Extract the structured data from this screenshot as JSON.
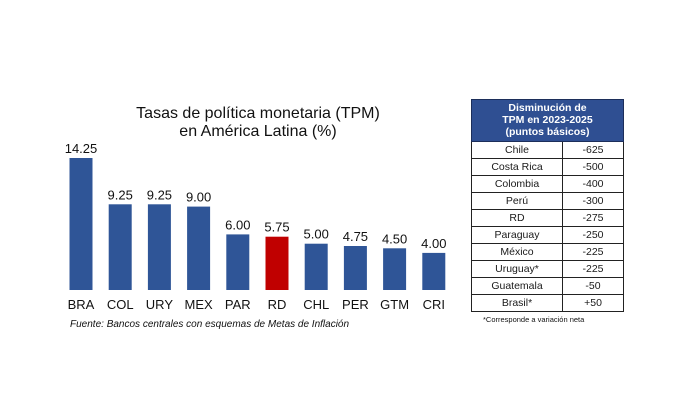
{
  "chart_data": {
    "type": "bar",
    "title_lines": [
      "Tasas de política monetaria (TPM)",
      "en América Latina (%)"
    ],
    "categories": [
      "BRA",
      "COL",
      "URY",
      "MEX",
      "PAR",
      "RD",
      "CHL",
      "PER",
      "GTM",
      "CRI"
    ],
    "values": [
      14.25,
      9.25,
      9.25,
      9.0,
      6.0,
      5.75,
      5.0,
      4.75,
      4.5,
      4.0
    ],
    "value_labels": [
      "14.25",
      "9.25",
      "9.25",
      "9.00",
      "6.00",
      "5.75",
      "5.00",
      "4.75",
      "4.50",
      "4.00"
    ],
    "highlight_category": "RD",
    "colors": {
      "default": "#2f5597",
      "highlight": "#c00000"
    },
    "xlabel": "",
    "ylabel": "",
    "ylim": [
      0,
      14.25
    ],
    "grid": false
  },
  "source": "Fuente: Bancos centrales con esquemas de Metas de Inflación",
  "table": {
    "header": [
      "Disminución de",
      "TPM en 2023-2025",
      "(puntos básicos)"
    ],
    "rows": [
      {
        "country": "Chile",
        "value": "-625"
      },
      {
        "country": "Costa Rica",
        "value": "-500"
      },
      {
        "country": "Colombia",
        "value": "-400"
      },
      {
        "country": "Perú",
        "value": "-300"
      },
      {
        "country": "RD",
        "value": "-275"
      },
      {
        "country": "Paraguay",
        "value": "-250"
      },
      {
        "country": "México",
        "value": "-225"
      },
      {
        "country": "Uruguay*",
        "value": "-225"
      },
      {
        "country": "Guatemala",
        "value": "-50"
      },
      {
        "country": "Brasil*",
        "value": "+50"
      }
    ],
    "footnote": "*Corresponde a variación neta"
  }
}
